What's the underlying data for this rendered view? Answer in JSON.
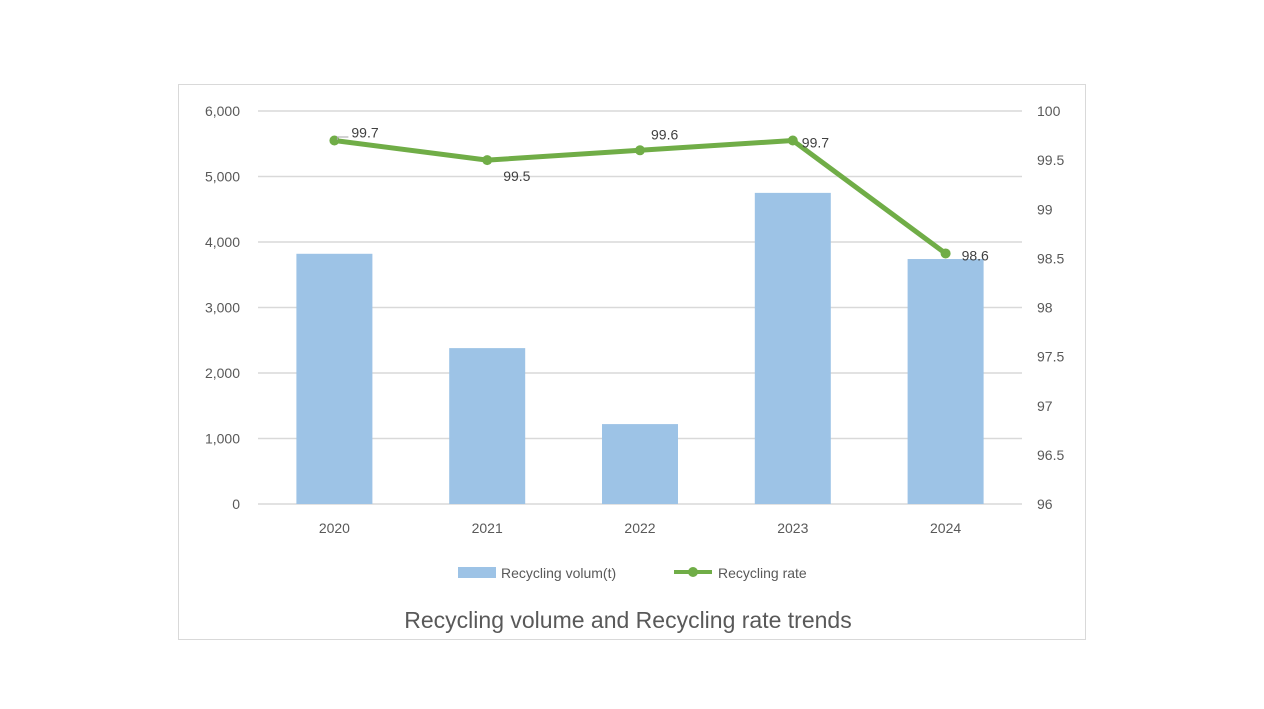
{
  "chart_data": {
    "type": "bar+line",
    "title": "Recycling volume and Recycling rate trends",
    "categories": [
      "2020",
      "2021",
      "2022",
      "2023",
      "2024"
    ],
    "series": [
      {
        "name": "Recycling volum(t)",
        "type": "bar",
        "axis": "left",
        "color": "#9DC3E6",
        "values": [
          3820,
          2380,
          1220,
          4750,
          3740
        ]
      },
      {
        "name": "Recycling rate",
        "type": "line",
        "axis": "right",
        "color": "#70AD47",
        "values": [
          99.7,
          99.5,
          99.6,
          99.7,
          98.55
        ],
        "data_labels": [
          "99.7",
          "99.5",
          "99.6",
          "99.7",
          "98.6"
        ]
      }
    ],
    "y_left": {
      "range": [
        0,
        6000
      ],
      "ticks": [
        "0",
        "1,000",
        "2,000",
        "3,000",
        "4,000",
        "5,000",
        "6,000"
      ]
    },
    "y_right": {
      "range": [
        96,
        100
      ],
      "ticks": [
        "96",
        "96.5",
        "97",
        "97.5",
        "98",
        "98.5",
        "99",
        "99.5",
        "100"
      ]
    },
    "grid": true,
    "legend": "bottom"
  }
}
